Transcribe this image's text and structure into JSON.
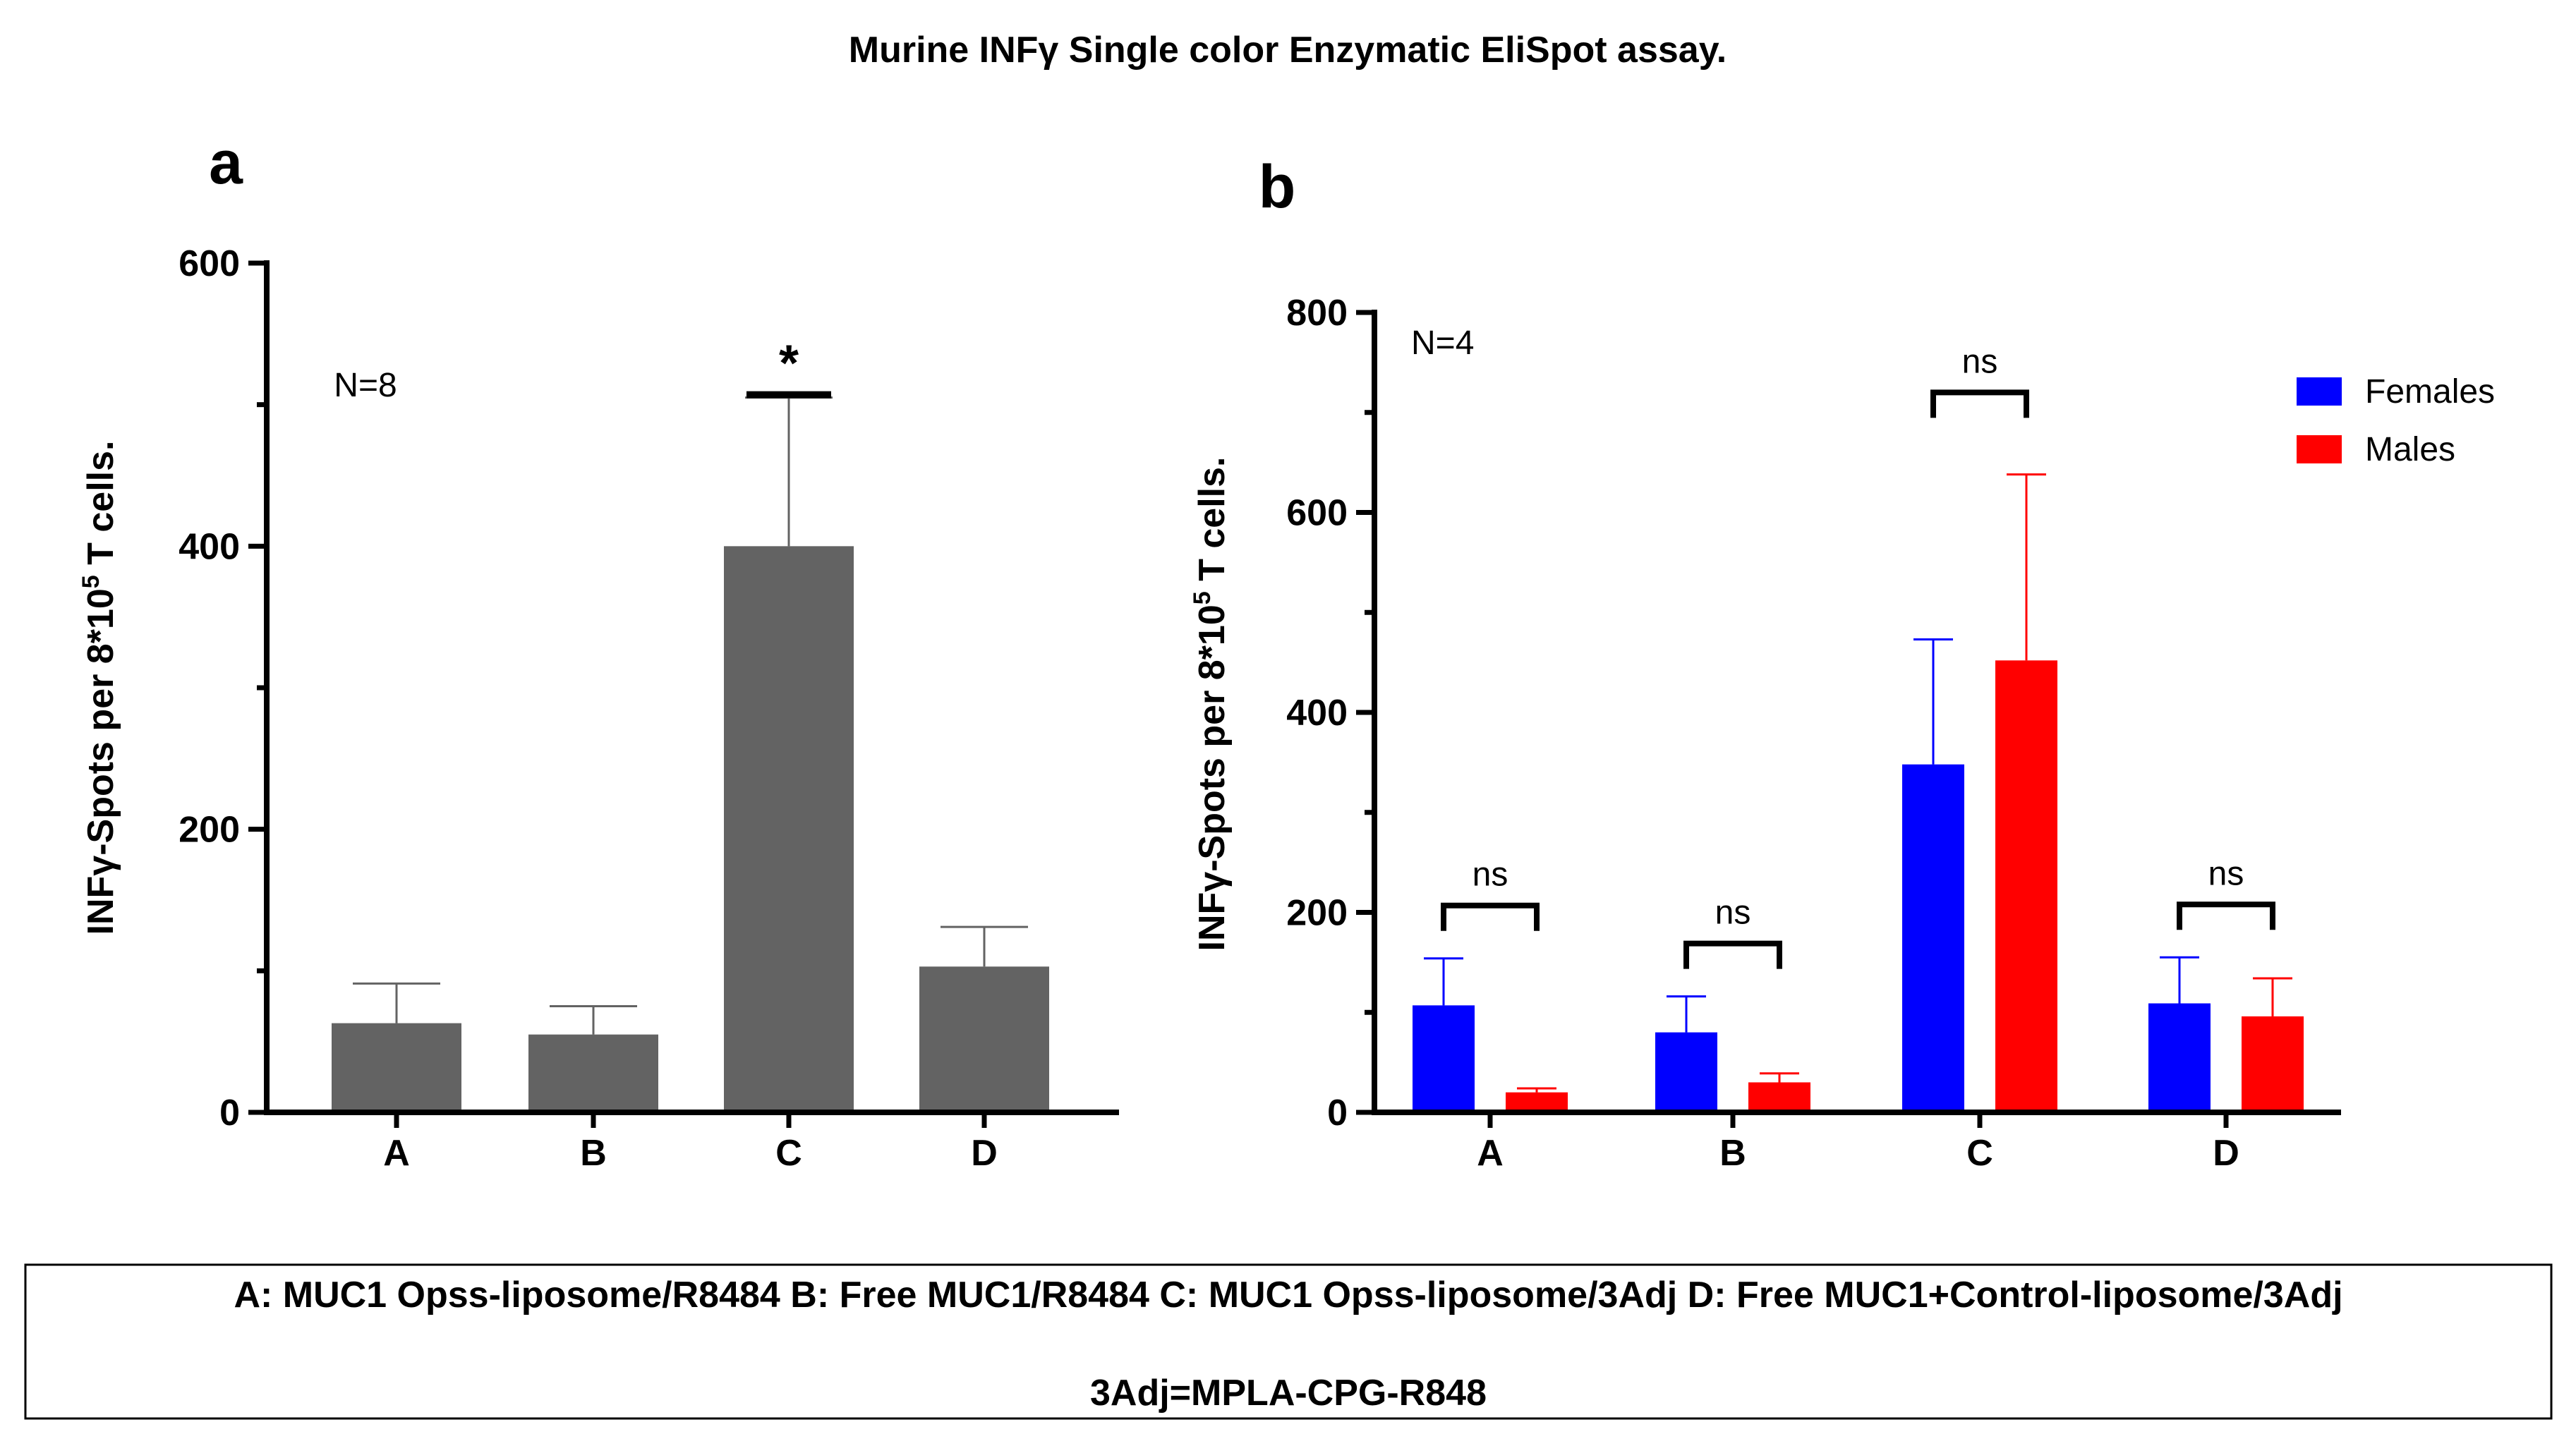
{
  "title": "Murine INFγ Single color Enzymatic EliSpot assay.",
  "footer": {
    "line1": "A: MUC1 Opss-liposome/R8484   B: Free MUC1/R8484  C: MUC1 Opss-liposome/3Adj    D: Free MUC1+Control-liposome/3Adj",
    "line2": "3Adj=MPLA-CPG-R848"
  },
  "colors": {
    "bar_a": "#636363",
    "females": "#0000ff",
    "males": "#ff0000",
    "axis": "#000000"
  },
  "chart_data": [
    {
      "panel": "a",
      "type": "bar",
      "ylabel_main": "INFγ-Spots per 8*10",
      "ylabel_sup": "5",
      "ylabel_tail": " T  cells.",
      "ylim": [
        0,
        600
      ],
      "yticks": [
        0,
        200,
        400,
        600
      ],
      "categories": [
        "A",
        "B",
        "C",
        "D"
      ],
      "values": [
        63,
        55,
        400,
        103
      ],
      "errors": [
        28,
        20,
        105,
        28
      ],
      "annotations": {
        "n_label": "N=8",
        "significance": {
          "category": "C",
          "label": "*"
        }
      },
      "grid": false
    },
    {
      "panel": "b",
      "type": "bar",
      "ylabel_main": "INFγ-Spots per 8*10",
      "ylabel_sup": "5",
      "ylabel_tail": " T  cells.",
      "ylim": [
        0,
        800
      ],
      "yticks": [
        0,
        200,
        400,
        600,
        800
      ],
      "categories": [
        "A",
        "B",
        "C",
        "D"
      ],
      "series": [
        {
          "name": "Females",
          "values": [
            107,
            80,
            348,
            109
          ],
          "errors": [
            47,
            36,
            125,
            46
          ]
        },
        {
          "name": "Males",
          "values": [
            20,
            30,
            452,
            96
          ],
          "errors": [
            4,
            9,
            186,
            38
          ]
        }
      ],
      "annotations": {
        "n_label": "N=4",
        "comparisons": [
          "ns",
          "ns",
          "ns",
          "ns"
        ]
      },
      "legend": "top-right",
      "grid": false
    }
  ]
}
